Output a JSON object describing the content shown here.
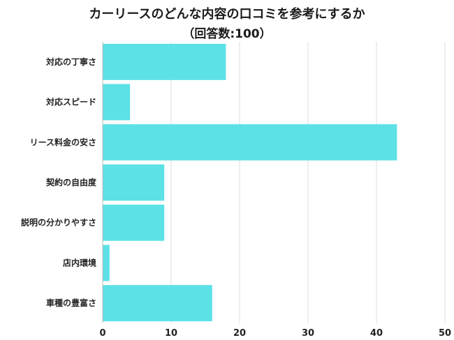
{
  "chart_data": {
    "type": "bar",
    "orientation": "horizontal",
    "title": "カーリースのどんな内容の口コミを参考にするか",
    "subtitle": "（回答数:100）",
    "categories": [
      "対応の丁寧さ",
      "対応スピード",
      "リース料金の安さ",
      "契約の自由度",
      "説明の分かりやすさ",
      "店内環境",
      "車種の豊富さ"
    ],
    "values": [
      18,
      4,
      43,
      9,
      9,
      1,
      16
    ],
    "xlim": [
      0,
      50
    ],
    "xticks": [
      0,
      10,
      20,
      30,
      40,
      50
    ],
    "grid": true,
    "bar_color": "#5ce1e6"
  }
}
